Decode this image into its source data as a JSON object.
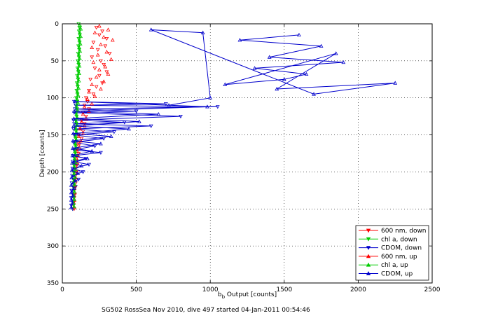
{
  "chart_data": {
    "type": "scatter",
    "xlabel_main": "b",
    "xlabel_sub": "b",
    "xlabel_rest": " Output [counts]",
    "ylabel": "Depth [counts]",
    "footer": "SG502 RossSea Nov 2010, dive 497 started 04-Jan-2011 00:54:46",
    "xlim": [
      0,
      2500
    ],
    "ylim": [
      0,
      350
    ],
    "y_reversed": true,
    "x_ticks": [
      "0",
      "500",
      "1000",
      "1500",
      "2000",
      "2500"
    ],
    "y_ticks": [
      "0",
      "50",
      "100",
      "150",
      "200",
      "250",
      "300",
      "350"
    ],
    "x_tick_values": [
      0,
      500,
      1000,
      1500,
      2000,
      2500
    ],
    "y_tick_values": [
      0,
      50,
      100,
      150,
      200,
      250,
      300,
      350
    ],
    "grid": true,
    "legend_position": "bottom-right",
    "series": [
      {
        "name": "600 nm, down",
        "color": "#ff0000",
        "marker": "down",
        "line": false,
        "points": [
          [
            230,
            5
          ],
          [
            270,
            10
          ],
          [
            250,
            15
          ],
          [
            300,
            20
          ],
          [
            210,
            25
          ],
          [
            290,
            30
          ],
          [
            240,
            35
          ],
          [
            320,
            40
          ],
          [
            200,
            45
          ],
          [
            260,
            50
          ],
          [
            280,
            55
          ],
          [
            220,
            60
          ],
          [
            300,
            65
          ],
          [
            250,
            70
          ],
          [
            190,
            75
          ],
          [
            270,
            80
          ],
          [
            230,
            85
          ],
          [
            180,
            90
          ],
          [
            210,
            95
          ],
          [
            160,
            100
          ],
          [
            170,
            105
          ],
          [
            150,
            110
          ],
          [
            180,
            115
          ],
          [
            140,
            120
          ],
          [
            160,
            125
          ],
          [
            130,
            130
          ],
          [
            150,
            135
          ],
          [
            120,
            140
          ],
          [
            140,
            145
          ],
          [
            110,
            150
          ],
          [
            130,
            155
          ],
          [
            120,
            160
          ],
          [
            110,
            165
          ],
          [
            100,
            170
          ],
          [
            110,
            175
          ],
          [
            100,
            180
          ],
          [
            95,
            185
          ],
          [
            100,
            190
          ],
          [
            90,
            195
          ],
          [
            95,
            200
          ],
          [
            90,
            205
          ],
          [
            85,
            210
          ],
          [
            90,
            215
          ],
          [
            85,
            220
          ],
          [
            80,
            225
          ],
          [
            85,
            230
          ],
          [
            80,
            235
          ],
          [
            80,
            240
          ],
          [
            75,
            245
          ],
          [
            80,
            250
          ]
        ]
      },
      {
        "name": "chl a, down",
        "color": "#00cc00",
        "marker": "down",
        "line": true,
        "points": [
          [
            110,
            0
          ],
          [
            115,
            5
          ],
          [
            112,
            10
          ],
          [
            118,
            15
          ],
          [
            110,
            20
          ],
          [
            116,
            25
          ],
          [
            108,
            30
          ],
          [
            114,
            35
          ],
          [
            106,
            40
          ],
          [
            112,
            45
          ],
          [
            104,
            50
          ],
          [
            110,
            55
          ],
          [
            102,
            60
          ],
          [
            108,
            65
          ],
          [
            100,
            70
          ],
          [
            106,
            75
          ],
          [
            98,
            80
          ],
          [
            104,
            85
          ],
          [
            96,
            90
          ],
          [
            102,
            95
          ],
          [
            94,
            100
          ],
          [
            100,
            105
          ],
          [
            92,
            110
          ],
          [
            98,
            115
          ],
          [
            90,
            120
          ],
          [
            96,
            125
          ],
          [
            88,
            130
          ],
          [
            94,
            135
          ],
          [
            86,
            140
          ],
          [
            92,
            145
          ],
          [
            84,
            150
          ],
          [
            90,
            155
          ],
          [
            82,
            160
          ],
          [
            88,
            165
          ],
          [
            80,
            170
          ],
          [
            86,
            175
          ],
          [
            78,
            180
          ],
          [
            84,
            185
          ],
          [
            76,
            190
          ],
          [
            82,
            195
          ],
          [
            75,
            200
          ],
          [
            80,
            205
          ],
          [
            74,
            210
          ],
          [
            79,
            215
          ],
          [
            73,
            220
          ],
          [
            78,
            225
          ],
          [
            72,
            230
          ],
          [
            77,
            235
          ],
          [
            71,
            240
          ],
          [
            76,
            245
          ],
          [
            70,
            250
          ]
        ]
      },
      {
        "name": "CDOM, down",
        "color": "#0000cc",
        "marker": "down",
        "line": true,
        "points": [
          [
            80,
            105
          ],
          [
            700,
            108
          ],
          [
            90,
            110
          ],
          [
            1050,
            112
          ],
          [
            85,
            115
          ],
          [
            500,
            118
          ],
          [
            80,
            120
          ],
          [
            800,
            125
          ],
          [
            75,
            130
          ],
          [
            420,
            133
          ],
          [
            80,
            135
          ],
          [
            600,
            138
          ],
          [
            75,
            142
          ],
          [
            350,
            146
          ],
          [
            80,
            150
          ],
          [
            280,
            155
          ],
          [
            75,
            160
          ],
          [
            220,
            165
          ],
          [
            78,
            170
          ],
          [
            260,
            174
          ],
          [
            72,
            178
          ],
          [
            160,
            182
          ],
          [
            70,
            186
          ],
          [
            180,
            190
          ],
          [
            68,
            195
          ],
          [
            140,
            200
          ],
          [
            66,
            205
          ],
          [
            110,
            210
          ],
          [
            64,
            215
          ],
          [
            90,
            220
          ],
          [
            62,
            225
          ],
          [
            80,
            230
          ],
          [
            60,
            235
          ],
          [
            75,
            240
          ],
          [
            60,
            245
          ],
          [
            70,
            250
          ]
        ]
      },
      {
        "name": "600 nm, up",
        "color": "#ff0000",
        "marker": "up",
        "line": false,
        "points": [
          [
            250,
            3
          ],
          [
            310,
            8
          ],
          [
            220,
            12
          ],
          [
            280,
            18
          ],
          [
            340,
            22
          ],
          [
            260,
            28
          ],
          [
            200,
            32
          ],
          [
            300,
            38
          ],
          [
            240,
            42
          ],
          [
            330,
            48
          ],
          [
            210,
            52
          ],
          [
            290,
            58
          ],
          [
            250,
            62
          ],
          [
            310,
            68
          ],
          [
            230,
            72
          ],
          [
            280,
            78
          ],
          [
            200,
            82
          ],
          [
            260,
            88
          ],
          [
            180,
            92
          ],
          [
            220,
            98
          ],
          [
            170,
            102
          ],
          [
            200,
            108
          ],
          [
            150,
            112
          ],
          [
            180,
            118
          ],
          [
            140,
            122
          ],
          [
            160,
            128
          ],
          [
            130,
            132
          ],
          [
            150,
            138
          ],
          [
            120,
            142
          ],
          [
            140,
            148
          ],
          [
            110,
            152
          ],
          [
            125,
            158
          ],
          [
            105,
            162
          ],
          [
            115,
            168
          ],
          [
            100,
            172
          ],
          [
            105,
            178
          ],
          [
            95,
            182
          ],
          [
            100,
            188
          ],
          [
            90,
            192
          ],
          [
            92,
            198
          ],
          [
            88,
            202
          ],
          [
            90,
            208
          ],
          [
            85,
            212
          ],
          [
            86,
            218
          ],
          [
            82,
            222
          ],
          [
            84,
            228
          ],
          [
            80,
            232
          ],
          [
            82,
            238
          ],
          [
            78,
            242
          ],
          [
            80,
            248
          ]
        ]
      },
      {
        "name": "chl a, up",
        "color": "#00cc00",
        "marker": "up",
        "line": true,
        "points": [
          [
            120,
            2
          ],
          [
            125,
            7
          ],
          [
            118,
            12
          ],
          [
            124,
            17
          ],
          [
            116,
            22
          ],
          [
            122,
            27
          ],
          [
            114,
            32
          ],
          [
            120,
            37
          ],
          [
            112,
            42
          ],
          [
            118,
            47
          ],
          [
            110,
            52
          ],
          [
            116,
            57
          ],
          [
            108,
            62
          ],
          [
            114,
            67
          ],
          [
            106,
            72
          ],
          [
            112,
            77
          ],
          [
            104,
            82
          ],
          [
            110,
            87
          ],
          [
            102,
            92
          ],
          [
            108,
            97
          ],
          [
            100,
            102
          ],
          [
            106,
            107
          ],
          [
            98,
            112
          ],
          [
            104,
            117
          ],
          [
            96,
            122
          ],
          [
            102,
            127
          ],
          [
            94,
            132
          ],
          [
            100,
            137
          ],
          [
            92,
            142
          ],
          [
            98,
            147
          ],
          [
            90,
            152
          ],
          [
            96,
            157
          ],
          [
            88,
            162
          ],
          [
            94,
            167
          ],
          [
            86,
            172
          ],
          [
            92,
            177
          ],
          [
            84,
            182
          ],
          [
            90,
            187
          ],
          [
            82,
            192
          ],
          [
            88,
            197
          ],
          [
            80,
            202
          ],
          [
            86,
            207
          ],
          [
            79,
            212
          ],
          [
            84,
            217
          ],
          [
            78,
            222
          ],
          [
            82,
            227
          ],
          [
            77,
            232
          ],
          [
            81,
            237
          ],
          [
            76,
            242
          ],
          [
            80,
            247
          ]
        ]
      },
      {
        "name": "CDOM, up",
        "color": "#0000cc",
        "marker": "up",
        "line": true,
        "points": [
          [
            1600,
            15
          ],
          [
            1200,
            22
          ],
          [
            1750,
            30
          ],
          [
            1400,
            45
          ],
          [
            1900,
            52
          ],
          [
            1300,
            60
          ],
          [
            1650,
            68
          ],
          [
            1500,
            75
          ],
          [
            1100,
            82
          ],
          [
            1850,
            40
          ],
          [
            1450,
            88
          ],
          [
            2250,
            80
          ],
          [
            1700,
            95
          ],
          [
            600,
            8
          ],
          [
            950,
            12
          ],
          [
            1000,
            100
          ],
          [
            720,
            110
          ],
          [
            85,
            105
          ],
          [
            980,
            112
          ],
          [
            80,
            118
          ],
          [
            650,
            122
          ],
          [
            78,
            128
          ],
          [
            520,
            132
          ],
          [
            76,
            138
          ],
          [
            450,
            142
          ],
          [
            74,
            148
          ],
          [
            330,
            152
          ],
          [
            72,
            158
          ],
          [
            260,
            162
          ],
          [
            70,
            168
          ],
          [
            200,
            172
          ],
          [
            68,
            178
          ],
          [
            170,
            182
          ],
          [
            66,
            188
          ],
          [
            130,
            192
          ],
          [
            64,
            198
          ],
          [
            105,
            202
          ],
          [
            62,
            208
          ],
          [
            88,
            212
          ],
          [
            60,
            218
          ],
          [
            78,
            222
          ],
          [
            60,
            228
          ],
          [
            72,
            232
          ],
          [
            60,
            238
          ],
          [
            68,
            242
          ],
          [
            60,
            248
          ]
        ]
      }
    ]
  }
}
